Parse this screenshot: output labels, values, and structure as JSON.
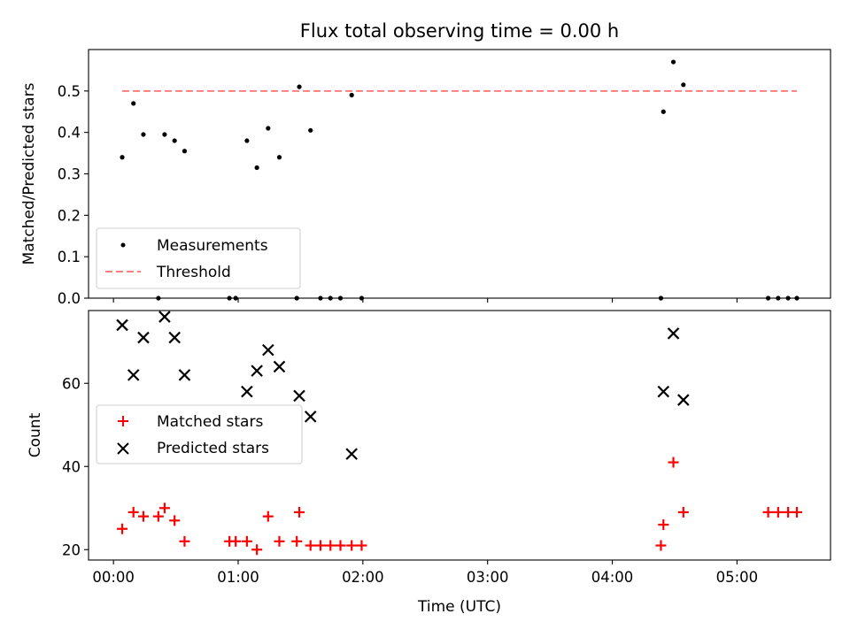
{
  "chart_data": [
    {
      "type": "scatter",
      "panel": "top",
      "title": "Flux total observing time = 0.00 h",
      "xlabel": "",
      "ylabel": "Matched/Predicted stars",
      "ylim": [
        0,
        0.6
      ],
      "xlim": [
        -0.2,
        5.75
      ],
      "yticks": [
        0,
        0.1,
        0.2,
        0.3,
        0.4,
        0.5
      ],
      "ytick_labels": [
        "0.0",
        "0.1",
        "0.2",
        "0.3",
        "0.4",
        "0.5"
      ],
      "xtick_labels_shown": false,
      "grid": false,
      "legend_position": "lower-left",
      "series": [
        {
          "name": "Measurements",
          "marker": "dot",
          "color": "#000000",
          "x": [
            0.07,
            0.16,
            0.24,
            0.36,
            0.41,
            0.49,
            0.57,
            0.93,
            0.98,
            1.07,
            1.15,
            1.24,
            1.33,
            1.47,
            1.49,
            1.58,
            1.66,
            1.74,
            1.82,
            1.91,
            1.99,
            4.39,
            4.41,
            4.49,
            4.57,
            5.25,
            5.33,
            5.41,
            5.48
          ],
          "y": [
            0.34,
            0.47,
            0.395,
            0.0,
            0.395,
            0.38,
            0.355,
            0.0,
            0.0,
            0.38,
            0.315,
            0.41,
            0.34,
            0.0,
            0.51,
            0.405,
            0.0,
            0.0,
            0.0,
            0.49,
            0.0,
            0.0,
            0.45,
            0.57,
            0.515,
            0.0,
            0.0,
            0.0,
            0.0
          ]
        },
        {
          "name": "Threshold",
          "line_style": "dashed",
          "color": "#ff7f7f",
          "x": [
            0.07,
            5.48
          ],
          "y": [
            0.5,
            0.5
          ]
        }
      ]
    },
    {
      "type": "scatter",
      "panel": "bottom",
      "title": "",
      "xlabel": "Time (UTC)",
      "ylabel": "Count",
      "ylim": [
        17.5,
        77.5
      ],
      "xlim": [
        -0.2,
        5.75
      ],
      "yticks": [
        20,
        40,
        60
      ],
      "ytick_labels": [
        "20",
        "40",
        "60"
      ],
      "xticks": [
        0,
        1,
        2,
        3,
        4,
        5
      ],
      "xtick_labels": [
        "00:00",
        "01:00",
        "02:00",
        "03:00",
        "04:00",
        "05:00"
      ],
      "grid": false,
      "legend_position": "center-left",
      "series": [
        {
          "name": "Matched stars",
          "marker": "plus",
          "color": "#ff0000",
          "x": [
            0.07,
            0.16,
            0.24,
            0.36,
            0.41,
            0.49,
            0.57,
            0.93,
            0.98,
            1.07,
            1.15,
            1.24,
            1.33,
            1.47,
            1.49,
            1.58,
            1.66,
            1.74,
            1.82,
            1.91,
            1.99,
            4.39,
            4.41,
            4.49,
            4.57,
            5.25,
            5.33,
            5.41,
            5.48
          ],
          "y": [
            25,
            29,
            28,
            28,
            30,
            27,
            22,
            22,
            22,
            22,
            20,
            28,
            22,
            22,
            29,
            21,
            21,
            21,
            21,
            21,
            21,
            21,
            26,
            41,
            29,
            29,
            29,
            29,
            29
          ]
        },
        {
          "name": "Predicted stars",
          "marker": "x",
          "color": "#000000",
          "x": [
            0.07,
            0.16,
            0.24,
            0.41,
            0.49,
            0.57,
            1.07,
            1.15,
            1.24,
            1.33,
            1.49,
            1.58,
            1.91,
            4.41,
            4.49,
            4.57
          ],
          "y": [
            74,
            62,
            71,
            76,
            71,
            62,
            58,
            63,
            68,
            64,
            57,
            52,
            43,
            58,
            72,
            56
          ]
        }
      ]
    }
  ]
}
